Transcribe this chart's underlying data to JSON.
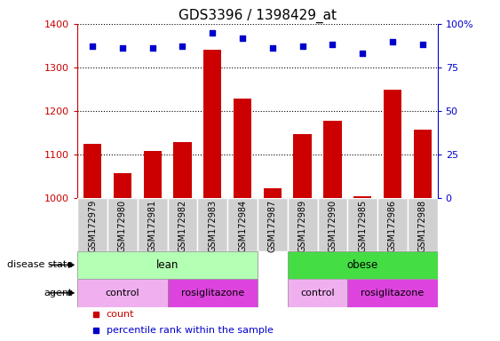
{
  "title": "GDS3396 / 1398429_at",
  "samples": [
    "GSM172979",
    "GSM172980",
    "GSM172981",
    "GSM172982",
    "GSM172983",
    "GSM172984",
    "GSM172987",
    "GSM172989",
    "GSM172990",
    "GSM172985",
    "GSM172986",
    "GSM172988"
  ],
  "counts": [
    1125,
    1058,
    1108,
    1128,
    1340,
    1228,
    1022,
    1148,
    1178,
    1005,
    1248,
    1158
  ],
  "percentiles": [
    87,
    86,
    86,
    87,
    95,
    92,
    86,
    87,
    88,
    83,
    90,
    88
  ],
  "ylim_left": [
    1000,
    1400
  ],
  "ylim_right": [
    0,
    100
  ],
  "yticks_left": [
    1000,
    1100,
    1200,
    1300,
    1400
  ],
  "yticks_right": [
    0,
    25,
    50,
    75,
    100
  ],
  "bar_color": "#cc0000",
  "dot_color": "#0000cc",
  "disease_lean_color": "#b3ffb3",
  "disease_obese_color": "#44dd44",
  "agent_control_color": "#f0b0f0",
  "agent_rosig_color": "#dd44dd",
  "legend_count_color": "#cc0000",
  "legend_dot_color": "#0000cc",
  "bg_color": "#d0d0d0",
  "title_fontsize": 11,
  "bar_width": 0.6
}
